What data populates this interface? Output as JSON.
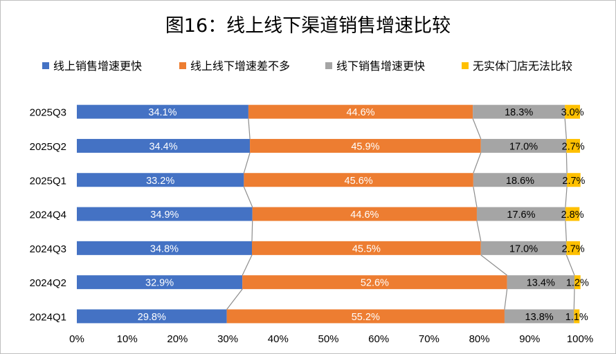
{
  "chart_data": {
    "type": "bar",
    "orientation": "horizontal",
    "stacked": "percent",
    "title": "图16：线上线下渠道销售增速比较",
    "categories": [
      "2025Q3",
      "2025Q2",
      "2025Q1",
      "2024Q4",
      "2024Q3",
      "2024Q2",
      "2024Q1"
    ],
    "series": [
      {
        "name": "线上销售增速更快",
        "color": "#4472c4",
        "values": [
          34.1,
          34.4,
          33.2,
          34.9,
          34.8,
          32.9,
          29.8
        ],
        "labels": [
          "34.1%",
          "34.4%",
          "33.2%",
          "34.9%",
          "34.8%",
          "32.9%",
          "29.8%"
        ]
      },
      {
        "name": "线上线下增速差不多",
        "color": "#ed7d31",
        "values": [
          44.6,
          45.9,
          45.6,
          44.6,
          45.5,
          52.6,
          55.2
        ],
        "labels": [
          "44.6%",
          "45.9%",
          "45.6%",
          "44.6%",
          "45.5%",
          "52.6%",
          "55.2%"
        ]
      },
      {
        "name": "线下销售增速更快",
        "color": "#a5a5a5",
        "values": [
          18.3,
          17.0,
          18.6,
          17.6,
          17.0,
          13.4,
          13.8
        ],
        "labels": [
          "18.3%",
          "17.0%",
          "18.6%",
          "17.6%",
          "17.0%",
          "13.4%",
          "13.8%"
        ]
      },
      {
        "name": "无实体门店无法比较",
        "color": "#ffc000",
        "values": [
          3.0,
          2.7,
          2.7,
          2.8,
          2.7,
          1.2,
          1.1
        ],
        "labels": [
          "3.0%",
          "2.7%",
          "2.7%",
          "2.8%",
          "2.7%",
          "1.2%",
          "1.1%"
        ]
      }
    ],
    "xlim": [
      0,
      100
    ],
    "xticks": [
      "0%",
      "10%",
      "20%",
      "30%",
      "40%",
      "50%",
      "60%",
      "70%",
      "80%",
      "90%",
      "100%"
    ],
    "series_lines": true,
    "legend": "top",
    "grid": false
  }
}
